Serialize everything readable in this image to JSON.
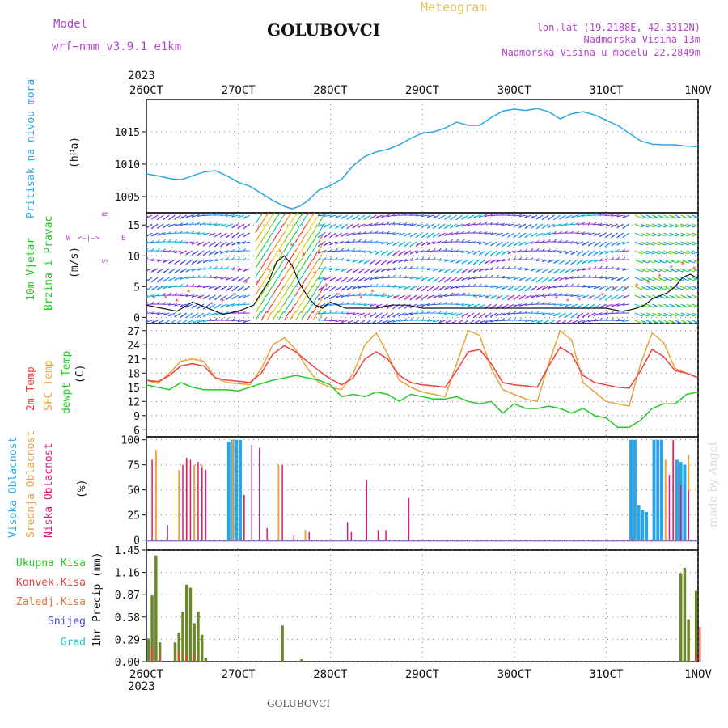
{
  "header": {
    "model_label": "Model",
    "model_name": "wrf−nmm_v3.9.1  e1km",
    "station_title": "GOLUBOVCI",
    "meteogram_label": "Meteogram",
    "lonlat": "lon,lat (19.2188E, 42.3312N)",
    "elevation": "Nadmorska Visina 13m",
    "model_elevation": "Nadmorska Visina u modelu 22.2849m"
  },
  "footer": {
    "station": "GOLUBOVCI",
    "credit": "made by Angel"
  },
  "colors": {
    "pressure": "#2aa6e6",
    "temp2m": "#f04040",
    "sfc_temp": "#e8a33c",
    "dewpoint": "#22cc22",
    "high_cloud": "#2aa6e6",
    "mid_cloud": "#e8a33c",
    "low_cloud": "#e0197a",
    "total_precip": "#6a8a2a",
    "conv_precip": "#e84040",
    "frozen_precip": "#f07030",
    "snow": "#4444e0",
    "hail": "#22c0c0",
    "wind_label": "#22cc22",
    "dir_legend": "#c040d0",
    "header_purple": "#b044cc",
    "header_gold": "#e8c060"
  },
  "time_axis": {
    "labels": [
      "26OCT",
      "27OCT",
      "28OCT",
      "29OCT",
      "30OCT",
      "31OCT",
      "1NOV"
    ],
    "year": "2023",
    "hours": 144
  },
  "direction_legend": {
    "west": "W",
    "east": "E",
    "north": "N",
    "south": "S"
  },
  "panels": {
    "pressure": {
      "labels": [
        "Pritisak na nivou mora",
        "(hPa)"
      ]
    },
    "wind": {
      "labels": [
        "10m Vjetar",
        "Brzina i Pravac",
        "(m/s)"
      ]
    },
    "temperature": {
      "labels": [
        "2m Temp",
        "SFC Temp",
        "dewpt Temp",
        "(C)"
      ]
    },
    "cloud": {
      "labels": [
        "Visoka Oblacnost",
        "Srednja Oblacnost",
        "Niska Oblacnost",
        "(%)"
      ]
    },
    "precip": {
      "labels": [
        "Ukupna Kisa",
        "Konvek.Kisa",
        "Zaledj.Kisa",
        "Snijeg",
        "Grad"
      ],
      "unit_label": "1hr Precip (mm)"
    }
  },
  "chart_data": [
    {
      "type": "line",
      "title": "",
      "ylabel": "(hPa)",
      "ylim": [
        1002.5,
        1020
      ],
      "yticks": [
        1005,
        1010,
        1015
      ],
      "x_unit": "hours since 26OCT 00",
      "series": [
        {
          "name": "Pritisak na nivou mora",
          "x": [
            0,
            3,
            6,
            9,
            12,
            15,
            18,
            21,
            24,
            27,
            30,
            33,
            36,
            38,
            40,
            42,
            45,
            48,
            51,
            54,
            57,
            60,
            63,
            66,
            69,
            72,
            75,
            78,
            81,
            84,
            87,
            90,
            93,
            96,
            99,
            102,
            105,
            108,
            111,
            114,
            117,
            120,
            123,
            126,
            129,
            132,
            135,
            138,
            141,
            144
          ],
          "values": [
            1008.5,
            1008.2,
            1007.8,
            1007.6,
            1008.2,
            1008.8,
            1009.0,
            1008.2,
            1007.2,
            1006.6,
            1005.5,
            1004.4,
            1003.5,
            1003.1,
            1003.5,
            1004.3,
            1006.0,
            1006.7,
            1007.7,
            1009.8,
            1011.2,
            1011.9,
            1012.3,
            1013.0,
            1014.0,
            1014.8,
            1015.0,
            1015.6,
            1016.5,
            1016.0,
            1016.0,
            1017.2,
            1018.2,
            1018.5,
            1018.3,
            1018.6,
            1018.1,
            1017.0,
            1017.8,
            1018.1,
            1017.6,
            1016.8,
            1016.0,
            1014.8,
            1013.6,
            1013.1,
            1013.0,
            1013.0,
            1012.8,
            1012.7
          ]
        }
      ]
    },
    {
      "type": "line",
      "title": "",
      "ylabel": "(m/s)",
      "ylim": [
        -1,
        17
      ],
      "yticks": [
        0,
        5,
        10,
        15
      ],
      "x_unit": "hours since 26OCT 00",
      "series": [
        {
          "name": "10m Vjetar",
          "x": [
            0,
            4,
            8,
            12,
            16,
            20,
            24,
            28,
            30,
            32,
            34,
            36,
            38,
            40,
            42,
            44,
            46,
            48,
            50,
            52,
            54,
            56,
            60,
            64,
            68,
            72,
            80,
            88,
            96,
            104,
            112,
            120,
            124,
            126,
            128,
            130,
            132,
            134,
            136,
            138,
            140,
            142,
            144
          ],
          "values": [
            2,
            1.5,
            1,
            2.5,
            1.5,
            0.5,
            1,
            2,
            4,
            6,
            9,
            10,
            8.5,
            5.5,
            3.5,
            2,
            1.5,
            2.5,
            2,
            1.5,
            1.5,
            1.5,
            1.5,
            2,
            2,
            1.5,
            1.5,
            1.5,
            1.5,
            1.5,
            1.5,
            1.5,
            1,
            1.2,
            1.5,
            2,
            3,
            3.5,
            4,
            5,
            6.5,
            7,
            6.3
          ]
        }
      ]
    },
    {
      "type": "line",
      "title": "",
      "ylabel": "(C)",
      "ylim": [
        4.5,
        28.5
      ],
      "yticks": [
        6,
        9,
        12,
        15,
        18,
        21,
        24,
        27
      ],
      "x_unit": "hours since 26OCT 00",
      "series": [
        {
          "name": "2m Temp",
          "x": [
            0,
            3,
            6,
            9,
            12,
            15,
            18,
            21,
            24,
            27,
            30,
            33,
            36,
            39,
            42,
            45,
            48,
            51,
            54,
            57,
            60,
            63,
            66,
            69,
            72,
            75,
            78,
            81,
            84,
            87,
            90,
            93,
            96,
            99,
            102,
            105,
            108,
            111,
            114,
            117,
            120,
            123,
            126,
            129,
            132,
            135,
            138,
            141,
            144
          ],
          "values": [
            16.5,
            16.2,
            17.5,
            19.5,
            20.0,
            19.5,
            17.0,
            16.5,
            16.3,
            16.0,
            18.0,
            22.0,
            23.8,
            22.5,
            20.5,
            18.5,
            16.8,
            15.5,
            17.0,
            21.0,
            22.5,
            21.0,
            17.5,
            16.0,
            15.5,
            15.3,
            15.0,
            18.5,
            22.5,
            23.0,
            20.0,
            16.0,
            15.5,
            15.3,
            15.0,
            19.5,
            23.5,
            22.0,
            17.5,
            16.0,
            15.5,
            15.0,
            14.8,
            18.5,
            23.0,
            21.5,
            18.5,
            18.0,
            17.0
          ]
        },
        {
          "name": "SFC Temp",
          "x": [
            0,
            3,
            6,
            9,
            12,
            15,
            18,
            21,
            24,
            27,
            30,
            33,
            36,
            39,
            42,
            45,
            48,
            51,
            54,
            57,
            60,
            63,
            66,
            69,
            72,
            75,
            78,
            81,
            84,
            87,
            90,
            93,
            96,
            99,
            102,
            105,
            108,
            111,
            114,
            117,
            120,
            123,
            126,
            129,
            132,
            135,
            138,
            141,
            144
          ],
          "values": [
            16.5,
            15.8,
            18.0,
            20.5,
            21.0,
            20.5,
            17.0,
            16.0,
            15.8,
            15.5,
            19.0,
            24.0,
            25.5,
            23.0,
            19.0,
            16.0,
            15.0,
            14.5,
            18.0,
            24.0,
            26.5,
            22.0,
            16.5,
            15.0,
            14.0,
            13.5,
            13.0,
            20.0,
            27.0,
            26.0,
            19.0,
            14.5,
            13.5,
            12.5,
            12.0,
            20.0,
            27.0,
            25.0,
            16.0,
            14.0,
            12.0,
            11.5,
            11.0,
            20.0,
            26.5,
            24.5,
            19.0,
            18.0,
            17.0
          ]
        },
        {
          "name": "dewpt Temp",
          "x": [
            0,
            3,
            6,
            9,
            12,
            15,
            18,
            21,
            24,
            27,
            30,
            33,
            36,
            39,
            42,
            45,
            48,
            51,
            54,
            57,
            60,
            63,
            66,
            69,
            72,
            75,
            78,
            81,
            84,
            87,
            90,
            93,
            96,
            99,
            102,
            105,
            108,
            111,
            114,
            117,
            120,
            123,
            126,
            129,
            132,
            135,
            138,
            141,
            144
          ],
          "values": [
            15.5,
            15.0,
            14.5,
            16.0,
            15.0,
            14.5,
            14.5,
            14.5,
            14.2,
            15.0,
            15.8,
            16.5,
            17.0,
            17.5,
            17.0,
            16.5,
            15.5,
            13.0,
            13.5,
            13.0,
            14.0,
            13.5,
            12.0,
            13.5,
            13.0,
            12.5,
            12.5,
            13.0,
            12.0,
            11.5,
            12.0,
            9.5,
            11.5,
            10.5,
            10.5,
            11.0,
            10.5,
            9.5,
            10.5,
            9.0,
            8.5,
            6.5,
            6.5,
            8.0,
            10.5,
            11.5,
            11.5,
            13.5,
            14.0
          ]
        }
      ]
    },
    {
      "type": "bar",
      "title": "",
      "ylabel": "(%)",
      "ylim": [
        0,
        100
      ],
      "yticks": [
        0,
        25,
        50,
        75,
        100
      ],
      "x_unit": "hours since 26OCT 00",
      "series": [
        {
          "name": "Visoka Oblacnost",
          "x": [
            21,
            22,
            23,
            24,
            126,
            127,
            128,
            129,
            130,
            132,
            133,
            134,
            138,
            139,
            140
          ],
          "values": [
            98,
            100,
            100,
            100,
            100,
            100,
            35,
            30,
            28,
            100,
            100,
            100,
            80,
            78,
            75
          ]
        },
        {
          "name": "Srednja Oblacnost",
          "x": [
            2,
            8,
            10,
            12,
            14,
            22,
            25,
            34,
            41,
            135,
            137,
            141
          ],
          "values": [
            90,
            70,
            80,
            75,
            75,
            100,
            45,
            75,
            10,
            80,
            98,
            85
          ]
        },
        {
          "name": "Niska Oblacnost",
          "x": [
            1,
            5,
            9,
            10,
            11,
            13,
            14,
            15,
            25,
            27,
            29,
            31,
            35,
            38,
            42,
            52,
            53,
            57,
            60,
            62,
            68,
            136,
            137,
            139,
            141
          ],
          "values": [
            80,
            15,
            75,
            82,
            80,
            78,
            72,
            70,
            45,
            95,
            92,
            12,
            75,
            5,
            8,
            18,
            8,
            60,
            10,
            10,
            42,
            65,
            100,
            55,
            50
          ]
        }
      ]
    },
    {
      "type": "bar",
      "title": "",
      "ylabel": "1hr Precip (mm)",
      "ylim": [
        0,
        1.45
      ],
      "yticks": [
        0,
        0.29,
        0.58,
        0.87,
        1.16,
        1.45
      ],
      "x_unit": "hours since 26OCT 00",
      "series": [
        {
          "name": "Ukupna Kisa",
          "x": [
            0,
            1,
            2,
            3,
            7,
            8,
            9,
            10,
            11,
            12,
            13,
            14,
            15,
            35,
            40,
            139,
            140,
            141,
            143
          ],
          "values": [
            0.3,
            0.86,
            1.38,
            0.25,
            0.25,
            0.38,
            0.65,
            1.0,
            0.96,
            0.5,
            0.65,
            0.35,
            0.05,
            0.47,
            0.03,
            1.15,
            1.22,
            0.55,
            0.92
          ]
        },
        {
          "name": "Konvek.Kisa",
          "x": [
            1,
            3,
            8,
            10,
            12,
            143,
            144
          ],
          "values": [
            0.2,
            0.1,
            0.15,
            0.1,
            0.1,
            0.1,
            0.45
          ]
        }
      ]
    }
  ]
}
